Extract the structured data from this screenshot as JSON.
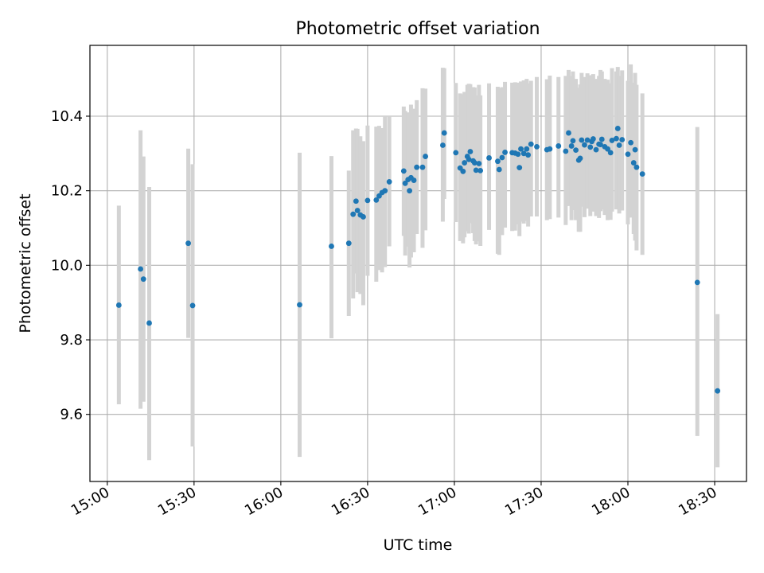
{
  "chart_data": {
    "type": "scatter",
    "title": "Photometric offset variation",
    "xlabel": "UTC time",
    "ylabel": "Photometric offset",
    "x_ticks": [
      "15:00",
      "15:30",
      "16:00",
      "16:30",
      "17:00",
      "17:30",
      "18:00",
      "18:30"
    ],
    "y_ticks": [
      "9.6",
      "9.8",
      "10.0",
      "10.2",
      "10.4"
    ],
    "xlim": [
      "14:54",
      "18:41"
    ],
    "ylim": [
      9.42,
      10.59
    ],
    "grid": true,
    "colors": {
      "marker": "#1f77b4",
      "errorbar": "#d3d3d3",
      "grid": "#b0b0b0"
    },
    "series": [
      {
        "points": [
          {
            "x": "15:04",
            "y": 9.893,
            "lo": 9.627,
            "hi": 10.16
          },
          {
            "x": "15:11:30",
            "y": 9.99,
            "lo": 9.615,
            "hi": 10.362
          },
          {
            "x": "15:12:30",
            "y": 9.963,
            "lo": 9.634,
            "hi": 10.292
          },
          {
            "x": "15:14:30",
            "y": 9.845,
            "lo": 9.477,
            "hi": 10.21
          },
          {
            "x": "15:28",
            "y": 10.059,
            "lo": 9.805,
            "hi": 10.313
          },
          {
            "x": "15:29:30",
            "y": 9.892,
            "lo": 9.514,
            "hi": 10.271
          },
          {
            "x": "16:06:30",
            "y": 9.894,
            "lo": 9.486,
            "hi": 10.302
          },
          {
            "x": "16:17:30",
            "y": 10.051,
            "lo": 9.804,
            "hi": 10.293
          },
          {
            "x": "16:23:30",
            "y": 10.059,
            "lo": 9.864,
            "hi": 10.254
          },
          {
            "x": "16:25",
            "y": 10.137,
            "lo": 9.911,
            "hi": 10.362
          },
          {
            "x": "16:26",
            "y": 10.172,
            "lo": 9.978,
            "hi": 10.367
          },
          {
            "x": "16:26:30",
            "y": 10.147,
            "lo": 9.928,
            "hi": 10.366
          },
          {
            "x": "16:27:30",
            "y": 10.135,
            "lo": 9.923,
            "hi": 10.346
          },
          {
            "x": "16:28:30",
            "y": 10.13,
            "lo": 9.893,
            "hi": 10.333
          },
          {
            "x": "16:30",
            "y": 10.174,
            "lo": 9.972,
            "hi": 10.375
          },
          {
            "x": "16:33",
            "y": 10.175,
            "lo": 9.956,
            "hi": 10.372
          },
          {
            "x": "16:34",
            "y": 10.186,
            "lo": 9.987,
            "hi": 10.374
          },
          {
            "x": "16:35",
            "y": 10.195,
            "lo": 9.981,
            "hi": 10.368
          },
          {
            "x": "16:36",
            "y": 10.2,
            "lo": 9.995,
            "hi": 10.398
          },
          {
            "x": "16:37:30",
            "y": 10.224,
            "lo": 10.051,
            "hi": 10.398
          },
          {
            "x": "16:42:30",
            "y": 10.253,
            "lo": 10.079,
            "hi": 10.426
          },
          {
            "x": "16:43",
            "y": 10.22,
            "lo": 10.026,
            "hi": 10.414
          },
          {
            "x": "16:44",
            "y": 10.23,
            "lo": 10.05,
            "hi": 10.41
          },
          {
            "x": "16:44:30",
            "y": 10.2,
            "lo": 9.994,
            "hi": 10.401
          },
          {
            "x": "16:45",
            "y": 10.235,
            "lo": 10.021,
            "hi": 10.431
          },
          {
            "x": "16:46",
            "y": 10.228,
            "lo": 10.035,
            "hi": 10.42
          },
          {
            "x": "16:47",
            "y": 10.263,
            "lo": 10.084,
            "hi": 10.443
          },
          {
            "x": "16:49",
            "y": 10.263,
            "lo": 10.047,
            "hi": 10.475
          },
          {
            "x": "16:50",
            "y": 10.292,
            "lo": 10.094,
            "hi": 10.474
          },
          {
            "x": "16:56",
            "y": 10.322,
            "lo": 10.117,
            "hi": 10.53
          },
          {
            "x": "16:56:30",
            "y": 10.355,
            "lo": 10.178,
            "hi": 10.529
          },
          {
            "x": "17:00:30",
            "y": 10.302,
            "lo": 10.116,
            "hi": 10.489
          },
          {
            "x": "17:02",
            "y": 10.261,
            "lo": 10.065,
            "hi": 10.461
          },
          {
            "x": "17:03",
            "y": 10.252,
            "lo": 10.059,
            "hi": 10.459
          },
          {
            "x": "17:03:30",
            "y": 10.275,
            "lo": 10.075,
            "hi": 10.465
          },
          {
            "x": "17:04:30",
            "y": 10.292,
            "lo": 10.091,
            "hi": 10.484
          },
          {
            "x": "17:05",
            "y": 10.284,
            "lo": 10.085,
            "hi": 10.487
          },
          {
            "x": "17:05:30",
            "y": 10.305,
            "lo": 10.113,
            "hi": 10.486
          },
          {
            "x": "17:06:30",
            "y": 10.28,
            "lo": 10.086,
            "hi": 10.478
          },
          {
            "x": "17:07",
            "y": 10.275,
            "lo": 10.065,
            "hi": 10.477
          },
          {
            "x": "17:07:30",
            "y": 10.255,
            "lo": 10.056,
            "hi": 10.456
          },
          {
            "x": "17:08:30",
            "y": 10.273,
            "lo": 10.064,
            "hi": 10.484
          },
          {
            "x": "17:09",
            "y": 10.254,
            "lo": 10.052,
            "hi": 10.456
          },
          {
            "x": "17:12",
            "y": 10.288,
            "lo": 10.095,
            "hi": 10.488
          },
          {
            "x": "17:15",
            "y": 10.279,
            "lo": 10.031,
            "hi": 10.479
          },
          {
            "x": "17:15:30",
            "y": 10.257,
            "lo": 10.028,
            "hi": 10.475
          },
          {
            "x": "17:16:30",
            "y": 10.289,
            "lo": 10.081,
            "hi": 10.478
          },
          {
            "x": "17:17:30",
            "y": 10.303,
            "lo": 10.101,
            "hi": 10.492
          },
          {
            "x": "17:20",
            "y": 10.302,
            "lo": 10.092,
            "hi": 10.49
          },
          {
            "x": "17:21",
            "y": 10.301,
            "lo": 10.093,
            "hi": 10.491
          },
          {
            "x": "17:22",
            "y": 10.298,
            "lo": 10.11,
            "hi": 10.49
          },
          {
            "x": "17:22:30",
            "y": 10.262,
            "lo": 10.078,
            "hi": 10.476
          },
          {
            "x": "17:23",
            "y": 10.312,
            "lo": 10.117,
            "hi": 10.493
          },
          {
            "x": "17:24",
            "y": 10.3,
            "lo": 10.112,
            "hi": 10.496
          },
          {
            "x": "17:25",
            "y": 10.312,
            "lo": 10.119,
            "hi": 10.5
          },
          {
            "x": "17:25:30",
            "y": 10.296,
            "lo": 10.104,
            "hi": 10.488
          },
          {
            "x": "17:26:30",
            "y": 10.325,
            "lo": 10.131,
            "hi": 10.495
          },
          {
            "x": "17:28:30",
            "y": 10.318,
            "lo": 10.131,
            "hi": 10.505
          },
          {
            "x": "17:32",
            "y": 10.31,
            "lo": 10.121,
            "hi": 10.499
          },
          {
            "x": "17:33",
            "y": 10.312,
            "lo": 10.124,
            "hi": 10.509
          },
          {
            "x": "17:36",
            "y": 10.32,
            "lo": 10.128,
            "hi": 10.505
          },
          {
            "x": "17:38:30",
            "y": 10.306,
            "lo": 10.108,
            "hi": 10.508
          },
          {
            "x": "17:39:30",
            "y": 10.355,
            "lo": 10.159,
            "hi": 10.524
          },
          {
            "x": "17:40:30",
            "y": 10.32,
            "lo": 10.121,
            "hi": 10.508
          },
          {
            "x": "17:41",
            "y": 10.334,
            "lo": 10.148,
            "hi": 10.52
          },
          {
            "x": "17:42",
            "y": 10.309,
            "lo": 10.121,
            "hi": 10.5
          },
          {
            "x": "17:43",
            "y": 10.282,
            "lo": 10.09,
            "hi": 10.476
          },
          {
            "x": "17:43:30",
            "y": 10.287,
            "lo": 10.09,
            "hi": 10.485
          },
          {
            "x": "17:44",
            "y": 10.336,
            "lo": 10.157,
            "hi": 10.516
          },
          {
            "x": "17:45",
            "y": 10.323,
            "lo": 10.129,
            "hi": 10.505
          },
          {
            "x": "17:46",
            "y": 10.336,
            "lo": 10.152,
            "hi": 10.515
          },
          {
            "x": "17:47",
            "y": 10.317,
            "lo": 10.132,
            "hi": 10.51
          },
          {
            "x": "17:47:30",
            "y": 10.332,
            "lo": 10.152,
            "hi": 10.51
          },
          {
            "x": "17:48",
            "y": 10.339,
            "lo": 10.144,
            "hi": 10.513
          },
          {
            "x": "17:49",
            "y": 10.31,
            "lo": 10.132,
            "hi": 10.5
          },
          {
            "x": "17:50",
            "y": 10.325,
            "lo": 10.127,
            "hi": 10.508
          },
          {
            "x": "17:50:30",
            "y": 10.324,
            "lo": 10.145,
            "hi": 10.524
          },
          {
            "x": "17:51",
            "y": 10.338,
            "lo": 10.15,
            "hi": 10.52
          },
          {
            "x": "17:52",
            "y": 10.318,
            "lo": 10.135,
            "hi": 10.5
          },
          {
            "x": "17:53",
            "y": 10.312,
            "lo": 10.121,
            "hi": 10.498
          },
          {
            "x": "17:54",
            "y": 10.302,
            "lo": 10.122,
            "hi": 10.488
          },
          {
            "x": "17:54:30",
            "y": 10.335,
            "lo": 10.144,
            "hi": 10.529
          },
          {
            "x": "17:56",
            "y": 10.34,
            "lo": 10.15,
            "hi": 10.52
          },
          {
            "x": "17:56:30",
            "y": 10.367,
            "lo": 10.192,
            "hi": 10.532
          },
          {
            "x": "17:57",
            "y": 10.322,
            "lo": 10.139,
            "hi": 10.508
          },
          {
            "x": "17:58",
            "y": 10.337,
            "lo": 10.147,
            "hi": 10.523
          },
          {
            "x": "18:00",
            "y": 10.298,
            "lo": 10.11,
            "hi": 10.495
          },
          {
            "x": "18:01",
            "y": 10.329,
            "lo": 10.128,
            "hi": 10.539
          },
          {
            "x": "18:02",
            "y": 10.275,
            "lo": 10.084,
            "hi": 10.49
          },
          {
            "x": "18:02:30",
            "y": 10.31,
            "lo": 10.066,
            "hi": 10.516
          },
          {
            "x": "18:03",
            "y": 10.263,
            "lo": 10.04,
            "hi": 10.484
          },
          {
            "x": "18:05",
            "y": 10.245,
            "lo": 10.028,
            "hi": 10.461
          },
          {
            "x": "18:24",
            "y": 9.954,
            "lo": 9.542,
            "hi": 10.371
          },
          {
            "x": "18:31",
            "y": 9.663,
            "lo": 9.458,
            "hi": 9.869
          }
        ]
      }
    ]
  }
}
